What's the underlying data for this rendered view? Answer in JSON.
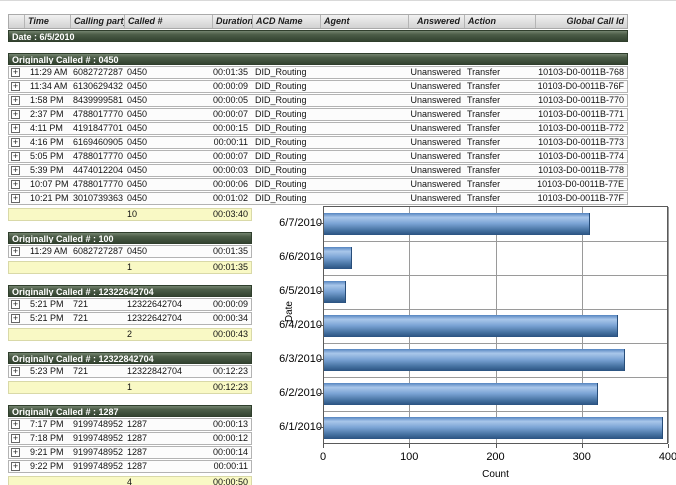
{
  "table": {
    "columns": [
      "",
      "Time",
      "Calling party #",
      "Called #",
      "Duration",
      "ACD Name",
      "Agent",
      "Answered",
      "Action",
      "Global Call Id"
    ],
    "date_header": "Date : 6/5/2010",
    "expander_glyph": "+",
    "groups": [
      {
        "header": "Originally Called # : 0450",
        "wide": true,
        "rows": [
          {
            "time": "11:29 AM",
            "calling": "6082727287",
            "called": "0450",
            "duration": "00:01:35",
            "acd": "DID_Routing",
            "agent": "",
            "answered": "Unanswered",
            "action": "Transfer",
            "global_id": "10103-D0-0011B-768"
          },
          {
            "time": "11:34 AM",
            "calling": "6130629432",
            "called": "0450",
            "duration": "00:00:09",
            "acd": "DID_Routing",
            "agent": "",
            "answered": "Unanswered",
            "action": "Transfer",
            "global_id": "10103-D0-0011B-76F"
          },
          {
            "time": "1:58 PM",
            "calling": "8439999581",
            "called": "0450",
            "duration": "00:00:05",
            "acd": "DID_Routing",
            "agent": "",
            "answered": "Unanswered",
            "action": "Transfer",
            "global_id": "10103-D0-0011B-770"
          },
          {
            "time": "2:37 PM",
            "calling": "4788017770",
            "called": "0450",
            "duration": "00:00:07",
            "acd": "DID_Routing",
            "agent": "",
            "answered": "Unanswered",
            "action": "Transfer",
            "global_id": "10103-D0-0011B-771"
          },
          {
            "time": "4:11 PM",
            "calling": "4191847701",
            "called": "0450",
            "duration": "00:00:15",
            "acd": "DID_Routing",
            "agent": "",
            "answered": "Unanswered",
            "action": "Transfer",
            "global_id": "10103-D0-0011B-772"
          },
          {
            "time": "4:16 PM",
            "calling": "6169460905",
            "called": "0450",
            "duration": "00:00:11",
            "acd": "DID_Routing",
            "agent": "",
            "answered": "Unanswered",
            "action": "Transfer",
            "global_id": "10103-D0-0011B-773"
          },
          {
            "time": "5:05 PM",
            "calling": "4788017770",
            "called": "0450",
            "duration": "00:00:07",
            "acd": "DID_Routing",
            "agent": "",
            "answered": "Unanswered",
            "action": "Transfer",
            "global_id": "10103-D0-0011B-774"
          },
          {
            "time": "5:39 PM",
            "calling": "4474012204",
            "called": "0450",
            "duration": "00:00:03",
            "acd": "DID_Routing",
            "agent": "",
            "answered": "Unanswered",
            "action": "Transfer",
            "global_id": "10103-D0-0011B-778"
          },
          {
            "time": "10:07 PM",
            "calling": "4788017770",
            "called": "0450",
            "duration": "00:00:06",
            "acd": "DID_Routing",
            "agent": "",
            "answered": "Unanswered",
            "action": "Transfer",
            "global_id": "10103-D0-0011B-77E"
          },
          {
            "time": "10:21 PM",
            "calling": "3010739363",
            "called": "0450",
            "duration": "00:01:02",
            "acd": "DID_Routing",
            "agent": "",
            "answered": "Unanswered",
            "action": "Transfer",
            "global_id": "10103-D0-0011B-77F"
          }
        ],
        "summary": {
          "count": "10",
          "duration": "00:03:40"
        }
      },
      {
        "header": "Originally Called # : 100",
        "wide": false,
        "rows": [
          {
            "time": "11:29 AM",
            "calling": "6082727287",
            "called": "0450",
            "duration": "00:01:35"
          }
        ],
        "summary": {
          "count": "1",
          "duration": "00:01:35"
        }
      },
      {
        "header": "Originally Called # : 12322642704",
        "wide": false,
        "rows": [
          {
            "time": "5:21 PM",
            "calling": "721",
            "called": "12322642704",
            "duration": "00:00:09"
          },
          {
            "time": "5:21 PM",
            "calling": "721",
            "called": "12322642704",
            "duration": "00:00:34"
          }
        ],
        "summary": {
          "count": "2",
          "duration": "00:00:43"
        }
      },
      {
        "header": "Originally Called # : 12322842704",
        "wide": false,
        "rows": [
          {
            "time": "5:23 PM",
            "calling": "721",
            "called": "12322842704",
            "duration": "00:12:23"
          }
        ],
        "summary": {
          "count": "1",
          "duration": "00:12:23"
        }
      },
      {
        "header": "Originally Called # : 1287",
        "wide": false,
        "rows": [
          {
            "time": "7:17 PM",
            "calling": "9199748952",
            "called": "1287",
            "duration": "00:00:13"
          },
          {
            "time": "7:18 PM",
            "calling": "9199748952",
            "called": "1287",
            "duration": "00:00:12"
          },
          {
            "time": "9:21 PM",
            "calling": "9199748952",
            "called": "1287",
            "duration": "00:00:14"
          },
          {
            "time": "9:22 PM",
            "calling": "9199748952",
            "called": "1287",
            "duration": "00:00:11"
          }
        ],
        "summary": {
          "count": "4",
          "duration": "00:00:50"
        }
      }
    ]
  },
  "chart_data": {
    "type": "bar",
    "orientation": "horizontal",
    "categories": [
      "6/7/2010",
      "6/6/2010",
      "6/5/2010",
      "6/4/2010",
      "6/3/2010",
      "6/2/2010",
      "6/1/2010"
    ],
    "values": [
      308,
      32,
      26,
      341,
      349,
      318,
      393
    ],
    "title": "",
    "xlabel": "Count",
    "ylabel": "Date",
    "xlim": [
      0,
      400
    ],
    "xticks": [
      0,
      100,
      200,
      300,
      400
    ],
    "grid": true,
    "legend": "none"
  },
  "colors": {
    "group_header_green": "#4c5d48",
    "summary_yellow": "#f9f9c5",
    "bar_blue_light": "#a9c7ea",
    "bar_blue_dark": "#2a5280",
    "header_gray": "#e3e3e3"
  }
}
